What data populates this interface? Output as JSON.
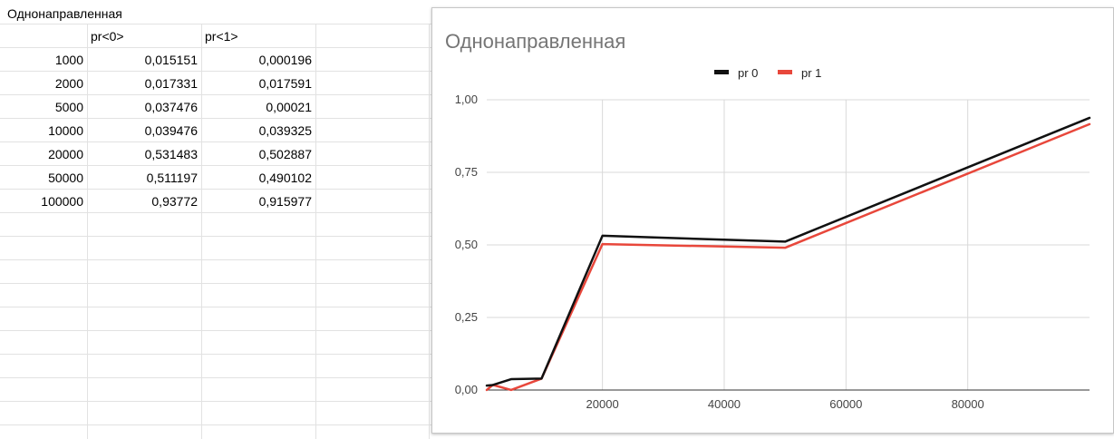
{
  "sheet": {
    "title": "Однонаправленная",
    "headers": [
      "",
      "pr<0>",
      "pr<1>"
    ],
    "rows": [
      [
        "1000",
        "0,015151",
        "0,000196"
      ],
      [
        "2000",
        "0,017331",
        "0,017591"
      ],
      [
        "5000",
        "0,037476",
        "0,00021"
      ],
      [
        "10000",
        "0,039476",
        "0,039325"
      ],
      [
        "20000",
        "0,531483",
        "0,502887"
      ],
      [
        "50000",
        "0,511197",
        "0,490102"
      ],
      [
        "100000",
        "0,93772",
        "0,915977"
      ]
    ]
  },
  "chart_data": {
    "type": "line",
    "title": "Однонаправленная",
    "xlabel": "",
    "ylabel": "",
    "x": [
      1000,
      2000,
      5000,
      10000,
      20000,
      50000,
      100000
    ],
    "series": [
      {
        "name": "pr 0",
        "color": "#111111",
        "values": [
          0.015151,
          0.017331,
          0.037476,
          0.039476,
          0.531483,
          0.511197,
          0.93772
        ]
      },
      {
        "name": "pr 1",
        "color": "#e8473b",
        "values": [
          0.000196,
          0.017591,
          0.00021,
          0.039325,
          0.502887,
          0.490102,
          0.915977
        ]
      }
    ],
    "xlim": [
      1000,
      100000
    ],
    "ylim": [
      0,
      1
    ],
    "xticks": [
      20000,
      40000,
      60000,
      80000
    ],
    "xtick_labels": [
      "20000",
      "40000",
      "60000",
      "80000"
    ],
    "yticks": [
      0,
      0.25,
      0.5,
      0.75,
      1
    ],
    "ytick_labels": [
      "0,00",
      "0,25",
      "0,50",
      "0,75",
      "1,00"
    ],
    "grid": true,
    "legend": "top"
  }
}
